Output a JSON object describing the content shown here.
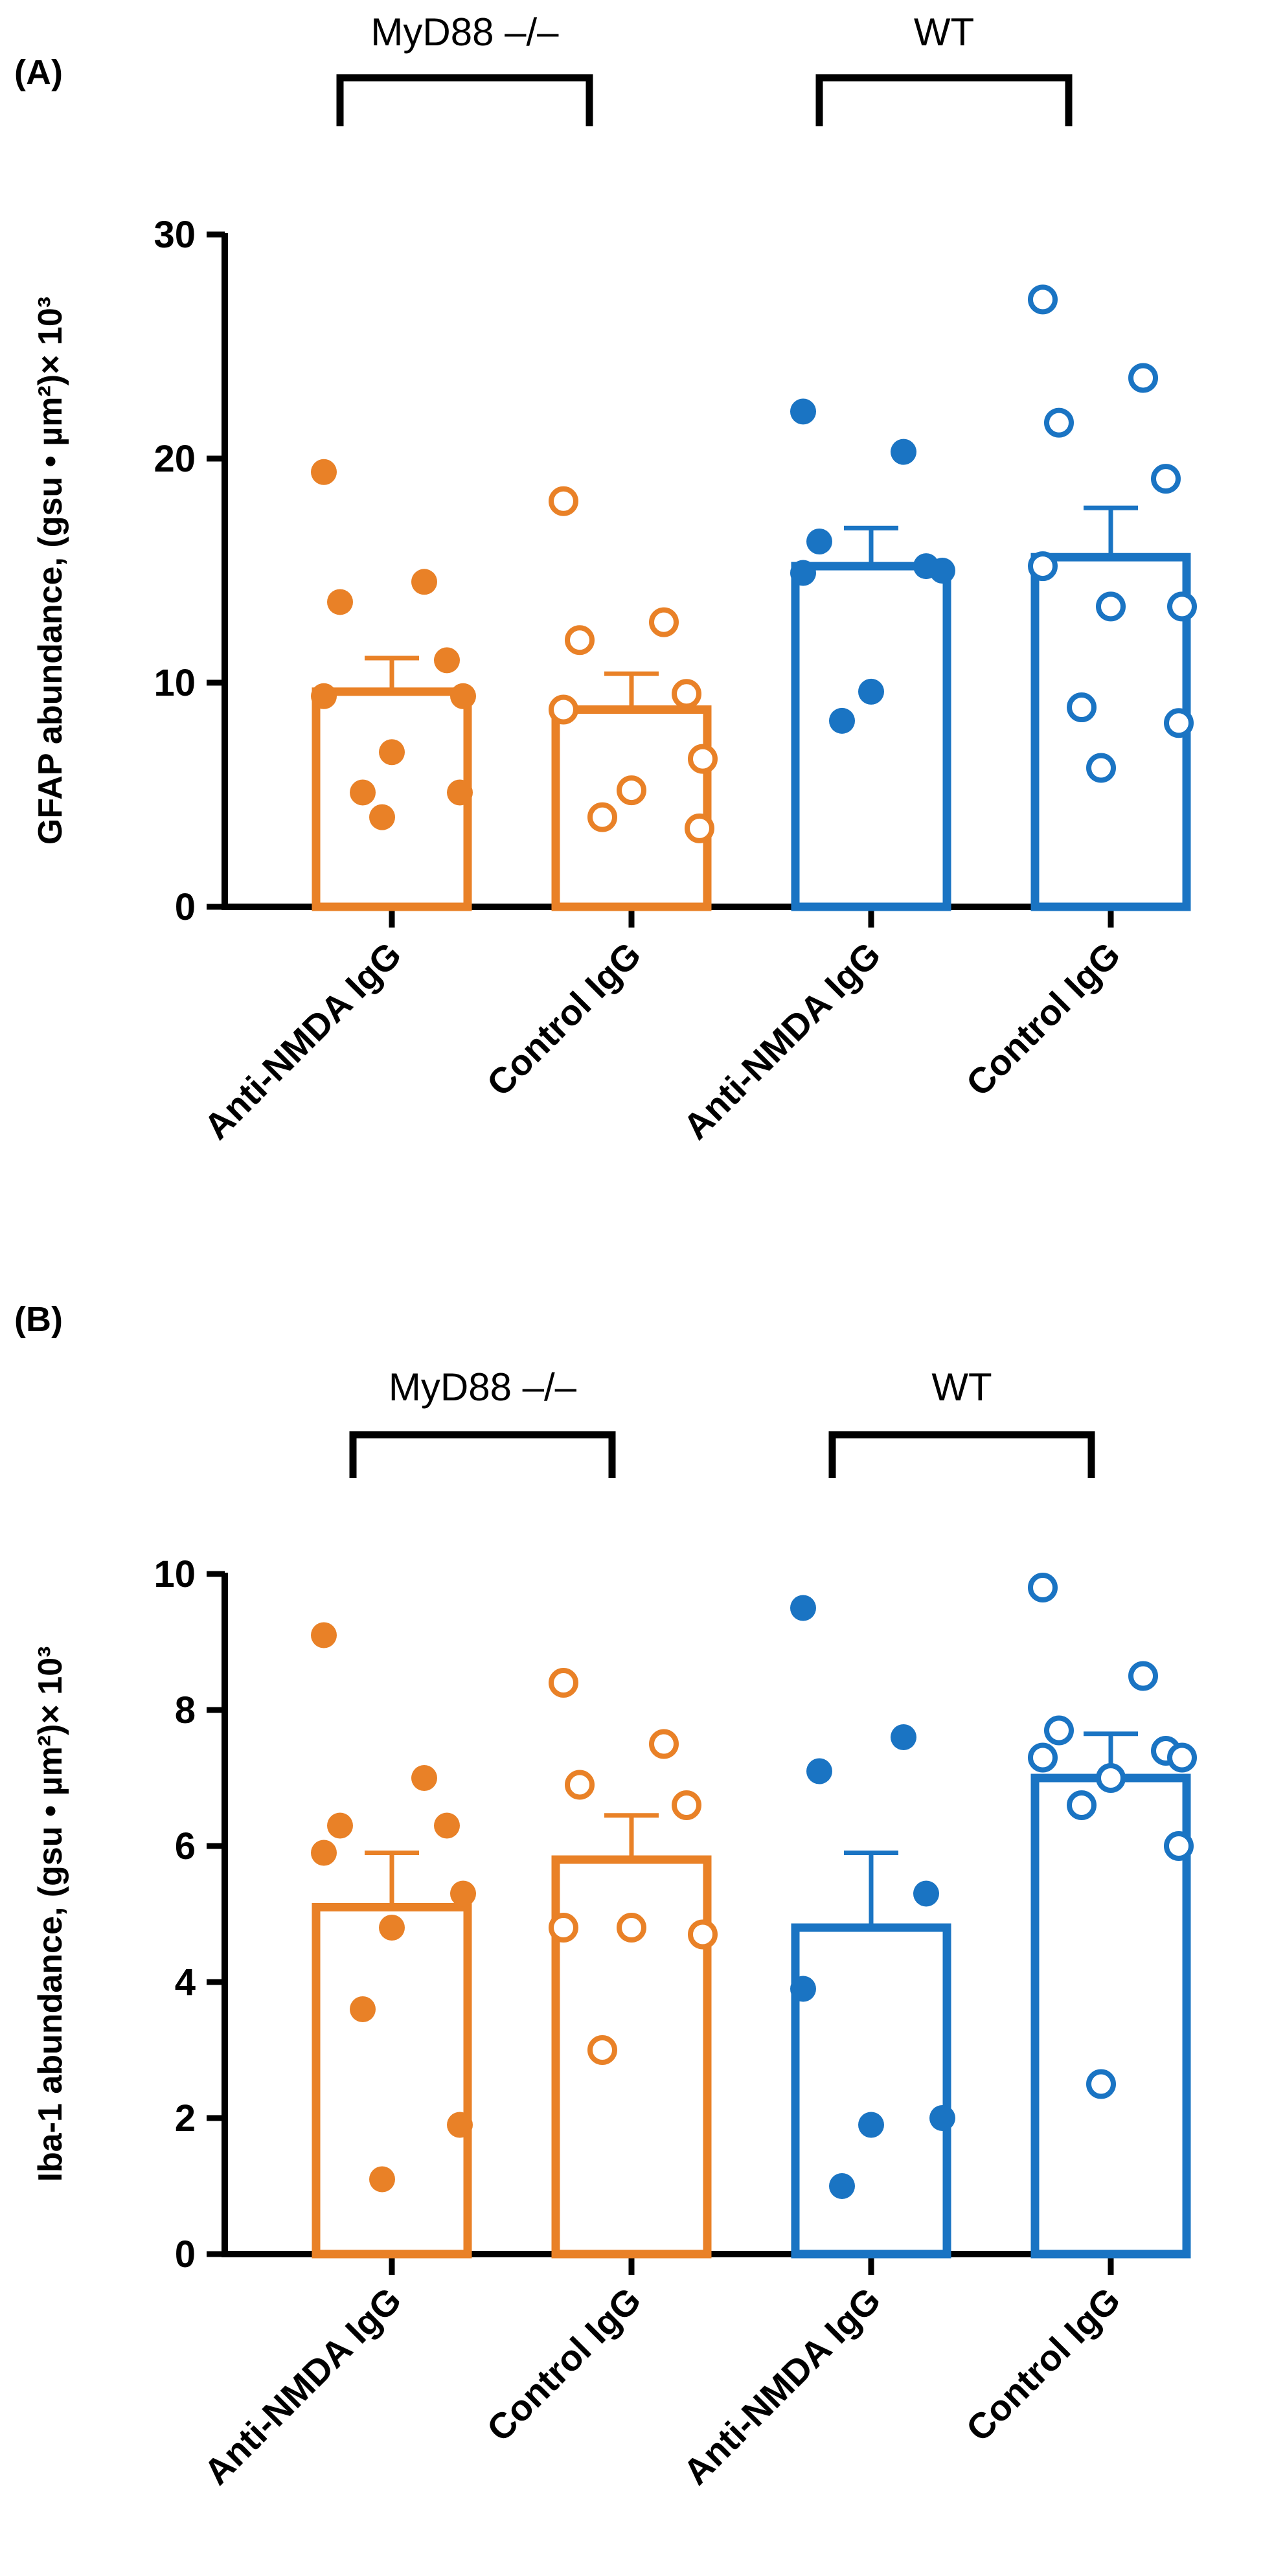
{
  "chart_data": [
    {
      "type": "bar",
      "panel_label": "(A)",
      "ylabel": "GFAP abundance, (gsu • µm²)× 10³",
      "ylim": [
        0,
        30
      ],
      "yticks": [
        "0",
        "10",
        "20",
        "30"
      ],
      "categories": [
        "Anti-NMDA IgG",
        "Control IgG",
        "Anti-NMDA IgG",
        "Control IgG"
      ],
      "groups": [
        {
          "label": "MyD88 –/–",
          "categories": [
            0,
            1
          ]
        },
        {
          "label": "WT",
          "categories": [
            2,
            3
          ]
        }
      ],
      "series": [
        {
          "group": "MyD88 –/–",
          "category": "Anti-NMDA IgG",
          "color": "#E98127",
          "marker": "filled",
          "mean": 9.6,
          "sem": 1.5,
          "points": [
            19.4,
            14.5,
            13.6,
            11.0,
            9.4,
            9.4,
            6.9,
            5.1,
            5.1,
            4.0
          ]
        },
        {
          "group": "MyD88 –/–",
          "category": "Control IgG",
          "color": "#E98127",
          "marker": "open",
          "mean": 8.8,
          "sem": 1.6,
          "points": [
            18.1,
            12.7,
            11.9,
            9.5,
            8.8,
            6.6,
            5.2,
            4.0,
            3.5
          ]
        },
        {
          "group": "WT",
          "category": "Anti-NMDA IgG",
          "color": "#1A74C3",
          "marker": "filled",
          "mean": 15.2,
          "sem": 1.7,
          "points": [
            22.1,
            20.3,
            16.3,
            15.2,
            14.9,
            15.0,
            9.6,
            8.3
          ]
        },
        {
          "group": "WT",
          "category": "Control IgG",
          "color": "#1A74C3",
          "marker": "open",
          "mean": 15.6,
          "sem": 2.2,
          "points": [
            27.1,
            23.6,
            21.6,
            19.1,
            15.2,
            13.4,
            13.4,
            8.9,
            8.2,
            6.2
          ]
        }
      ]
    },
    {
      "type": "bar",
      "panel_label": "(B)",
      "ylabel": "Iba-1 abundance, (gsu • µm²)× 10³",
      "ylim": [
        0,
        10
      ],
      "yticks": [
        "0",
        "2",
        "4",
        "6",
        "8",
        "10"
      ],
      "categories": [
        "Anti-NMDA IgG",
        "Control IgG",
        "Anti-NMDA IgG",
        "Control IgG"
      ],
      "groups": [
        {
          "label": "MyD88 –/–",
          "categories": [
            0,
            1
          ]
        },
        {
          "label": "WT",
          "categories": [
            2,
            3
          ]
        }
      ],
      "series": [
        {
          "group": "MyD88 –/–",
          "category": "Anti-NMDA IgG",
          "color": "#E98127",
          "marker": "filled",
          "mean": 5.1,
          "sem": 0.8,
          "points": [
            9.1,
            7.0,
            6.3,
            6.3,
            5.9,
            5.3,
            4.8,
            3.6,
            1.9,
            1.1
          ]
        },
        {
          "group": "MyD88 –/–",
          "category": "Control IgG",
          "color": "#E98127",
          "marker": "open",
          "mean": 5.8,
          "sem": 0.65,
          "points": [
            8.4,
            7.5,
            6.9,
            6.6,
            4.8,
            4.7,
            4.8,
            3.0
          ]
        },
        {
          "group": "WT",
          "category": "Anti-NMDA IgG",
          "color": "#1A74C3",
          "marker": "filled",
          "mean": 4.8,
          "sem": 1.1,
          "points": [
            9.5,
            7.6,
            7.1,
            5.3,
            3.9,
            2.0,
            1.9,
            1.0
          ]
        },
        {
          "group": "WT",
          "category": "Control IgG",
          "color": "#1A74C3",
          "marker": "open",
          "mean": 7.0,
          "sem": 0.65,
          "points": [
            9.8,
            8.5,
            7.7,
            7.4,
            7.3,
            7.3,
            7.0,
            6.6,
            6.0,
            2.5
          ]
        }
      ]
    }
  ]
}
